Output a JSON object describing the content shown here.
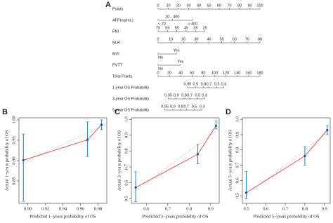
{
  "chart_data": [
    {
      "type": "nomogram",
      "panel": "A",
      "rows": [
        {
          "label": "Points",
          "scale": "points",
          "ticks": [
            0,
            10,
            20,
            30,
            40,
            50,
            60,
            70,
            80,
            90,
            100
          ]
        },
        {
          "label": "AFP(ng/mL)",
          "scale": "points",
          "ticks": [
            "< 20",
            "20 - 400",
            "> 400"
          ],
          "points": [
            0,
            14,
            34
          ]
        },
        {
          "label": "PNI",
          "scale": "points",
          "ticks": [
            75,
            65,
            55,
            45,
            35,
            25
          ],
          "points": [
            0,
            9.2,
            18.4,
            27.6,
            36.8,
            46
          ]
        },
        {
          "label": "NLR",
          "scale": "points",
          "ticks": [
            0,
            10,
            20,
            30,
            40,
            50,
            60,
            70,
            80
          ],
          "points": [
            0,
            12.5,
            25,
            37.5,
            50,
            62.5,
            75,
            87.5,
            100
          ]
        },
        {
          "label": "MVI",
          "scale": "points",
          "ticks": [
            "No",
            "Yes"
          ],
          "points": [
            0,
            18
          ]
        },
        {
          "label": "PVTT",
          "scale": "points",
          "ticks": [
            "No",
            "Yes"
          ],
          "points": [
            0,
            22
          ]
        },
        {
          "label": "Total Points",
          "scale": "total",
          "ticks": [
            0,
            20,
            40,
            60,
            80,
            100,
            120,
            140,
            160,
            180
          ]
        },
        {
          "label": "1-year OS Probability",
          "scale": "total",
          "ticks": [
            0.95,
            0.9,
            0.8,
            0.7,
            0.5,
            0.3
          ],
          "points": [
            52,
            66,
            80,
            90,
            104,
            116
          ]
        },
        {
          "label": "3-year OS Probability",
          "scale": "total",
          "ticks": [
            0.95,
            0.9,
            0.8,
            0.7,
            0.5,
            0.3
          ],
          "points": [
            18,
            32,
            46,
            56,
            70,
            82
          ]
        },
        {
          "label": "5-year OS Probability",
          "scale": "total",
          "ticks": [
            0.95,
            0.9,
            0.8,
            0.7,
            0.5,
            0.3
          ],
          "points": [
            12,
            26,
            40,
            50,
            64,
            78
          ]
        }
      ]
    },
    {
      "type": "calibration",
      "panel": "B",
      "xlabel": "Predicted 1−years probability of OS",
      "ylabel": "Actual 1−years probability of OS",
      "xlim": [
        0.89,
        0.99
      ],
      "ylim": [
        0.795,
        1.005
      ],
      "xticks": [
        {
          "value": 0.9,
          "label": "0.90"
        },
        0.92,
        0.94,
        0.96,
        0.98
      ],
      "yticks": [
        0.85,
        {
          "value": 0.9,
          "label": "0.90"
        },
        0.95,
        {
          "value": 1,
          "label": "1.00"
        }
      ],
      "predicted": [
        0.895,
        0.968,
        0.984
      ],
      "observed": [
        0.901,
        0.951,
        0.988
      ],
      "lower": [
        0.8,
        0.91,
        0.976
      ],
      "upper": [
        0.965,
        0.995,
        1.0
      ],
      "color": "#e8443a",
      "errorbar_color": "#2a8fd1",
      "ideal_color": "#b0b0b0"
    },
    {
      "type": "calibration",
      "panel": "C",
      "xlabel": "Predicted 3−years probability of OS",
      "ylabel": "Actual 3−years probability of OS",
      "xlim": [
        0.53,
        0.94
      ],
      "ylim": [
        0.47,
        1.01
      ],
      "xticks": [
        0.6,
        0.7,
        0.8,
        0.9
      ],
      "yticks": [
        0.5,
        0.6,
        0.7,
        0.8,
        0.9,
        {
          "value": 1,
          "label": "1.0"
        }
      ],
      "predicted": [
        0.55,
        0.84,
        0.925
      ],
      "observed": [
        0.57,
        0.78,
        0.96
      ],
      "lower": [
        0.48,
        0.72,
        0.94
      ],
      "upper": [
        0.67,
        0.84,
        0.99
      ],
      "color": "#e8443a",
      "errorbar_color": "#2a8fd1",
      "ideal_color": "#b0b0b0"
    },
    {
      "type": "calibration",
      "panel": "D",
      "xlabel": "Predicted 5−years probability of OS",
      "ylabel": "Actual 5−years probability of OS",
      "xlim": [
        0.48,
        0.93
      ],
      "ylim": [
        0.45,
        1.01
      ],
      "xticks": [
        0.5,
        0.6,
        0.7,
        0.8,
        0.9
      ],
      "yticks": [
        0.5,
        0.6,
        0.7,
        0.8,
        0.9,
        {
          "value": 1,
          "label": "1.0"
        }
      ],
      "predicted": [
        0.5,
        0.8,
        0.915
      ],
      "observed": [
        0.52,
        0.76,
        0.93
      ],
      "lower": [
        0.48,
        0.7,
        0.9
      ],
      "upper": [
        0.66,
        0.82,
        0.96
      ],
      "color": "#e8443a",
      "errorbar_color": "#2a8fd1",
      "ideal_color": "#b0b0b0"
    }
  ]
}
